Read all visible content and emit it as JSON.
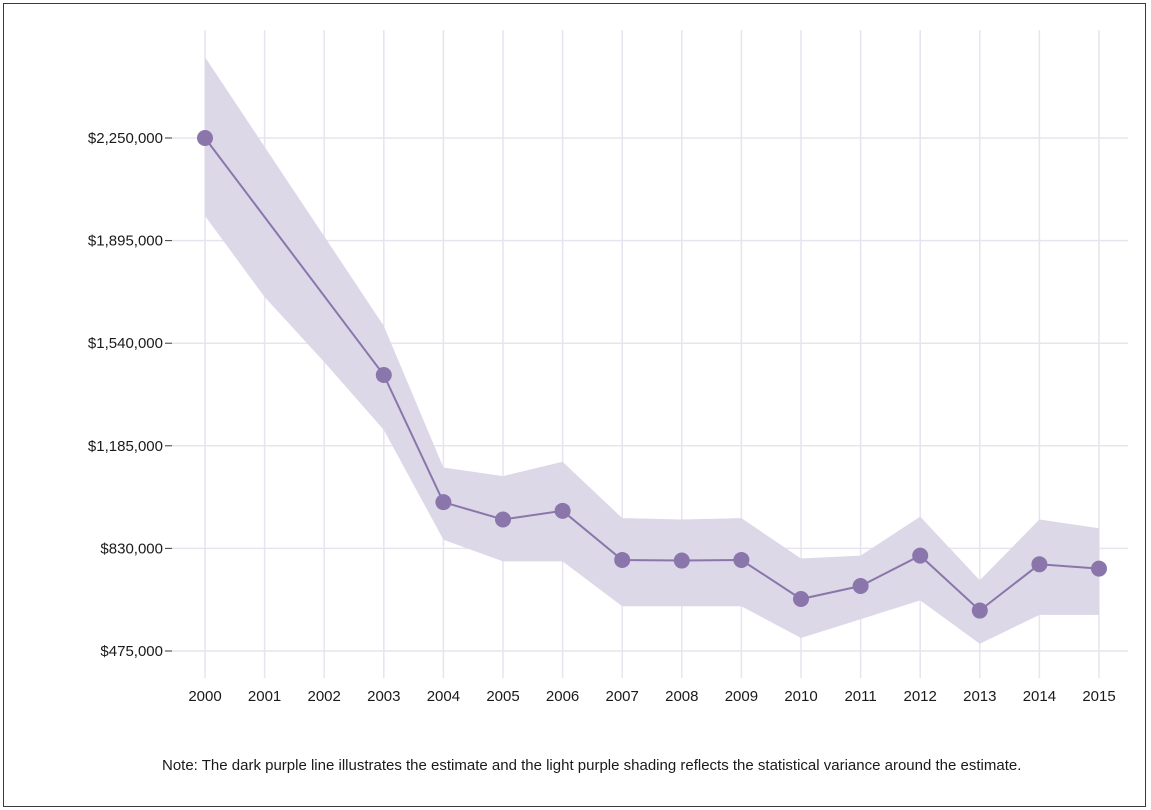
{
  "chart_data": {
    "type": "line",
    "title": "",
    "xlabel": "",
    "ylabel": "",
    "x": [
      2000,
      2001,
      2002,
      2003,
      2004,
      2005,
      2006,
      2007,
      2008,
      2009,
      2010,
      2011,
      2012,
      2013,
      2014,
      2015
    ],
    "x_tick_labels": [
      "2000",
      "2001",
      "2002",
      "2003",
      "2004",
      "2005",
      "2006",
      "2007",
      "2008",
      "2009",
      "2010",
      "2011",
      "2012",
      "2013",
      "2014",
      "2015"
    ],
    "series": [
      {
        "estimate": [
          {
            "x": 2000,
            "y": 2250000
          },
          {
            "x": 2003,
            "y": 1430000
          },
          {
            "x": 2004,
            "y": 990000
          },
          {
            "x": 2005,
            "y": 930000
          },
          {
            "x": 2006,
            "y": 960000
          },
          {
            "x": 2007,
            "y": 790000
          },
          {
            "x": 2008,
            "y": 788000
          },
          {
            "x": 2009,
            "y": 790000
          },
          {
            "x": 2010,
            "y": 655000
          },
          {
            "x": 2011,
            "y": 700000
          },
          {
            "x": 2012,
            "y": 805000
          },
          {
            "x": 2013,
            "y": 615000
          },
          {
            "x": 2014,
            "y": 775000
          },
          {
            "x": 2015,
            "y": 760000
          }
        ],
        "lower": [
          1980000,
          1700000,
          1475000,
          1240000,
          860000,
          785000,
          785000,
          630000,
          630000,
          630000,
          520000,
          585000,
          650000,
          500000,
          600000,
          600000
        ],
        "upper": [
          2530000,
          2220000,
          1910000,
          1600000,
          1110000,
          1080000,
          1130000,
          935000,
          930000,
          935000,
          795000,
          805000,
          940000,
          720000,
          930000,
          900000
        ]
      }
    ],
    "y_ticks": [
      475000,
      830000,
      1185000,
      1540000,
      1895000,
      2250000
    ],
    "y_tick_labels": [
      "$475,000",
      "$830,000",
      "$1,185,000",
      "$1,540,000",
      "$1,895,000",
      "$2,250,000"
    ],
    "ylim": [
      440000,
      2530000
    ],
    "grid": true,
    "colors": {
      "line": "#8a76ab",
      "marker": "#8a76ab",
      "band": "#dad6e6",
      "grid": "#e6e4ef"
    }
  },
  "note": "Note: The dark purple line illustrates the estimate and the light purple shading reflects the statistical variance around the estimate."
}
